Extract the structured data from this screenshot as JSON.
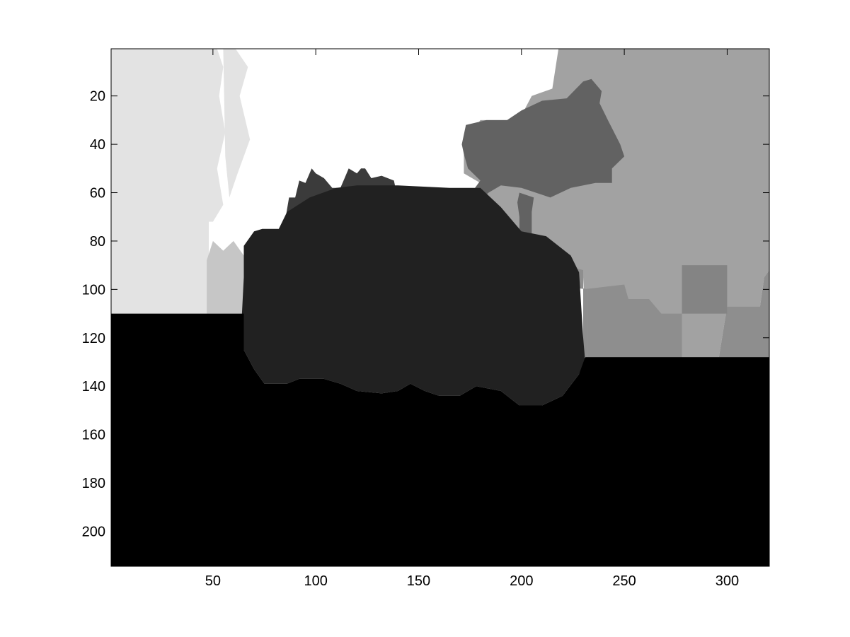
{
  "chart_data": {
    "type": "heatmap",
    "title": "",
    "xlabel": "",
    "ylabel": "",
    "xlim": [
      0.5,
      320.5
    ],
    "ylim": [
      0.5,
      214.5
    ],
    "y_reversed": true,
    "colormap": "gray",
    "grid": false,
    "legend": "none",
    "x_ticks": [
      50,
      100,
      150,
      200,
      250,
      300
    ],
    "y_ticks": [
      20,
      40,
      60,
      80,
      100,
      120,
      140,
      160,
      180,
      200
    ],
    "x_tick_labels": [
      "50",
      "100",
      "150",
      "200",
      "250",
      "300"
    ],
    "y_tick_labels": [
      "20",
      "40",
      "60",
      "80",
      "100",
      "120",
      "140",
      "160",
      "180",
      "200"
    ],
    "regions": [
      {
        "name": "left-background",
        "color": "#e3e3e3",
        "polygon": [
          [
            0.5,
            0.5
          ],
          [
            48,
            0.5
          ],
          [
            48,
            110
          ],
          [
            0.5,
            110
          ]
        ]
      },
      {
        "name": "left-ground-strip",
        "color": "#c6c6c6",
        "polygon": [
          [
            47,
            110
          ],
          [
            47,
            88
          ],
          [
            50,
            80
          ],
          [
            55,
            84
          ],
          [
            60,
            80
          ],
          [
            65,
            86
          ],
          [
            70,
            86
          ],
          [
            70,
            110
          ]
        ]
      },
      {
        "name": "sky-region",
        "color": "#ffffff",
        "polygon": [
          [
            48,
            0.5
          ],
          [
            218,
            0.5
          ],
          [
            215,
            17
          ],
          [
            205,
            20
          ],
          [
            200,
            28
          ],
          [
            193,
            30
          ],
          [
            180,
            30
          ],
          [
            172,
            40
          ],
          [
            172,
            52
          ],
          [
            180,
            56
          ],
          [
            172,
            66
          ],
          [
            172,
            72
          ],
          [
            120,
            72
          ],
          [
            82,
            88
          ],
          [
            82,
            80
          ],
          [
            70,
            84
          ],
          [
            60,
            76
          ],
          [
            50,
            70
          ],
          [
            48,
            50
          ]
        ]
      },
      {
        "name": "dotted-tree-pattern-1",
        "color": "#e3e3e3",
        "polygon": [
          [
            48,
            0.5
          ],
          [
            52,
            0.5
          ],
          [
            55,
            8
          ],
          [
            53,
            20
          ],
          [
            56,
            35
          ],
          [
            52,
            50
          ],
          [
            55,
            65
          ],
          [
            50,
            72
          ],
          [
            48,
            72
          ]
        ]
      },
      {
        "name": "dotted-tree-pattern-2",
        "color": "#e3e3e3",
        "polygon": [
          [
            55,
            0.5
          ],
          [
            61,
            0.5
          ],
          [
            67,
            8
          ],
          [
            63,
            20
          ],
          [
            68,
            38
          ],
          [
            62,
            52
          ],
          [
            58,
            62
          ],
          [
            56,
            45
          ]
        ]
      },
      {
        "name": "right-background",
        "color": "#a2a2a2",
        "polygon": [
          [
            218,
            0.5
          ],
          [
            320.5,
            0.5
          ],
          [
            320.5,
            92
          ],
          [
            318,
            95
          ],
          [
            316,
            107
          ],
          [
            300,
            107
          ],
          [
            296,
            128
          ],
          [
            232,
            128
          ],
          [
            230,
            95
          ],
          [
            210,
            88
          ],
          [
            200,
            84
          ],
          [
            188,
            72
          ],
          [
            174,
            68
          ],
          [
            180,
            56
          ],
          [
            172,
            52
          ],
          [
            172,
            40
          ],
          [
            180,
            30
          ],
          [
            193,
            30
          ],
          [
            200,
            28
          ],
          [
            205,
            20
          ],
          [
            215,
            17
          ]
        ]
      },
      {
        "name": "mid-gray-buildings",
        "color": "#8e8e8e",
        "polygon": [
          [
            210,
            88
          ],
          [
            230,
            92
          ],
          [
            230,
            128
          ],
          [
            296,
            128
          ],
          [
            300,
            107
          ],
          [
            316,
            107
          ],
          [
            318,
            95
          ],
          [
            320.5,
            92
          ],
          [
            320.5,
            128
          ],
          [
            296,
            128
          ],
          [
            232,
            128
          ],
          [
            232,
            100
          ],
          [
            212,
            96
          ]
        ]
      },
      {
        "name": "distant-building",
        "color": "#848484",
        "polygon": [
          [
            278,
            90
          ],
          [
            300,
            90
          ],
          [
            300,
            110
          ],
          [
            278,
            110
          ]
        ]
      },
      {
        "name": "building-row",
        "color": "#8e8e8e",
        "polygon": [
          [
            210,
            94
          ],
          [
            230,
            94
          ],
          [
            230,
            100
          ],
          [
            250,
            98
          ],
          [
            252,
            104
          ],
          [
            262,
            104
          ],
          [
            268,
            110
          ],
          [
            278,
            110
          ],
          [
            278,
            128
          ],
          [
            232,
            128
          ],
          [
            232,
            100
          ],
          [
            212,
            98
          ]
        ]
      },
      {
        "name": "tree-canopy",
        "color": "#626262",
        "polygon": [
          [
            193,
            30
          ],
          [
            200,
            26
          ],
          [
            210,
            22
          ],
          [
            222,
            21
          ],
          [
            230,
            14
          ],
          [
            234,
            13
          ],
          [
            239,
            18
          ],
          [
            238,
            23
          ],
          [
            242,
            30
          ],
          [
            248,
            40
          ],
          [
            250,
            45
          ],
          [
            244,
            50
          ],
          [
            244,
            56
          ],
          [
            236,
            56
          ],
          [
            224,
            58
          ],
          [
            214,
            62
          ],
          [
            200,
            58
          ],
          [
            190,
            57
          ],
          [
            184,
            60
          ],
          [
            176,
            66
          ],
          [
            174,
            62
          ],
          [
            180,
            55
          ],
          [
            174,
            50
          ],
          [
            172,
            44
          ],
          [
            171,
            40
          ],
          [
            173,
            32
          ],
          [
            183,
            30
          ]
        ]
      },
      {
        "name": "tree-trunk",
        "color": "#626262",
        "polygon": [
          [
            199,
            60
          ],
          [
            206,
            62
          ],
          [
            205,
            68
          ],
          [
            205,
            88
          ],
          [
            199,
            88
          ],
          [
            199,
            70
          ],
          [
            198,
            64
          ]
        ]
      },
      {
        "name": "shrubs-behind-vehicle",
        "color": "#3b3b3b",
        "polygon": [
          [
            75,
            88
          ],
          [
            76,
            82
          ],
          [
            82,
            80
          ],
          [
            85,
            72
          ],
          [
            87,
            62
          ],
          [
            90,
            62
          ],
          [
            92,
            55
          ],
          [
            95,
            56
          ],
          [
            98,
            50
          ],
          [
            100,
            52
          ],
          [
            104,
            54
          ],
          [
            108,
            58
          ],
          [
            112,
            58
          ],
          [
            114,
            54
          ],
          [
            116,
            50
          ],
          [
            120,
            52
          ],
          [
            122,
            50
          ],
          [
            124,
            50
          ],
          [
            127,
            54
          ],
          [
            132,
            53
          ],
          [
            138,
            55
          ],
          [
            140,
            63
          ],
          [
            140,
            68
          ],
          [
            148,
            70
          ],
          [
            150,
            70
          ],
          [
            152,
            66
          ],
          [
            155,
            68
          ],
          [
            157,
            62
          ],
          [
            160,
            62
          ],
          [
            163,
            62
          ],
          [
            164,
            70
          ],
          [
            162,
            72
          ],
          [
            120,
            72
          ],
          [
            90,
            82
          ],
          [
            88,
            88
          ]
        ]
      },
      {
        "name": "vehicle-body",
        "color": "#212121",
        "polygon": [
          [
            65,
            82
          ],
          [
            70,
            76
          ],
          [
            74,
            75
          ],
          [
            82,
            75
          ],
          [
            86,
            68
          ],
          [
            97,
            62
          ],
          [
            110,
            58
          ],
          [
            120,
            57
          ],
          [
            140,
            57
          ],
          [
            165,
            58
          ],
          [
            180,
            58
          ],
          [
            190,
            66
          ],
          [
            196,
            72
          ],
          [
            200,
            76
          ],
          [
            212,
            78
          ],
          [
            224,
            86
          ],
          [
            228,
            93
          ],
          [
            230,
            120
          ],
          [
            231,
            130
          ],
          [
            228,
            135
          ],
          [
            220,
            144
          ],
          [
            210,
            148
          ],
          [
            199,
            148
          ],
          [
            190,
            142
          ],
          [
            178,
            140
          ],
          [
            170,
            144
          ],
          [
            160,
            144
          ],
          [
            153,
            142
          ],
          [
            146,
            139
          ],
          [
            140,
            142
          ],
          [
            132,
            143
          ],
          [
            120,
            142
          ],
          [
            112,
            139
          ],
          [
            104,
            137
          ],
          [
            92,
            137
          ],
          [
            86,
            139
          ],
          [
            75,
            139
          ],
          [
            70,
            133
          ],
          [
            65,
            125
          ],
          [
            64,
            112
          ],
          [
            65,
            95
          ]
        ]
      },
      {
        "name": "ground-foreground",
        "color": "#000000",
        "polygon": [
          [
            0.5,
            110
          ],
          [
            65,
            110
          ],
          [
            65,
            125
          ],
          [
            70,
            133
          ],
          [
            75,
            139
          ],
          [
            86,
            139
          ],
          [
            92,
            137
          ],
          [
            104,
            137
          ],
          [
            112,
            139
          ],
          [
            120,
            142
          ],
          [
            132,
            143
          ],
          [
            140,
            142
          ],
          [
            146,
            139
          ],
          [
            153,
            142
          ],
          [
            160,
            144
          ],
          [
            170,
            144
          ],
          [
            178,
            140
          ],
          [
            190,
            142
          ],
          [
            199,
            148
          ],
          [
            210,
            148
          ],
          [
            220,
            144
          ],
          [
            228,
            135
          ],
          [
            231,
            128
          ],
          [
            320.5,
            128
          ],
          [
            320.5,
            214.5
          ],
          [
            0.5,
            214.5
          ]
        ]
      }
    ]
  }
}
